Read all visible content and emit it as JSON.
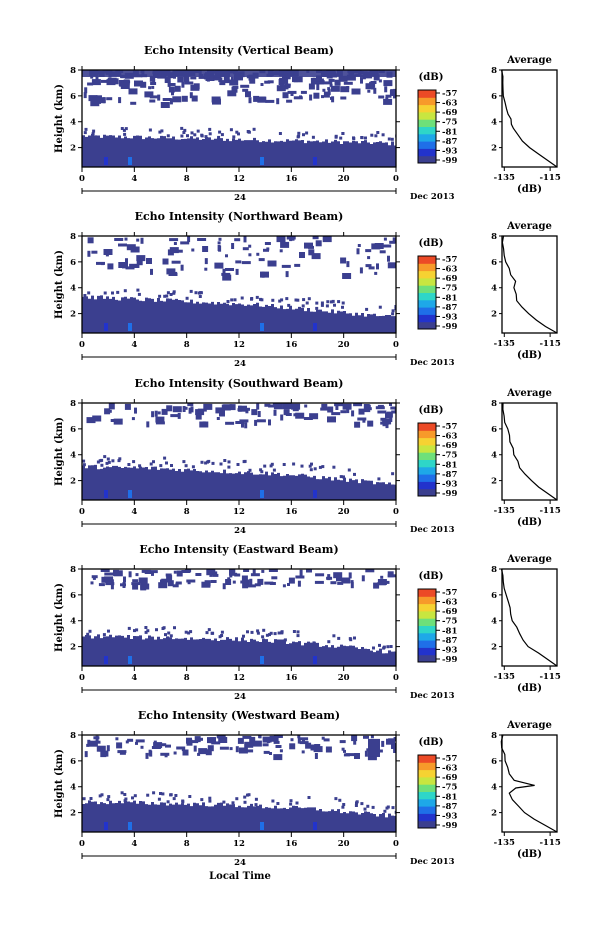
{
  "figure": {
    "xaxis_label": "Local Time",
    "yaxis_label": "Height (km)",
    "date_label": "Dec 2013",
    "day_label": "24",
    "x_ticks": [
      "0",
      "4",
      "8",
      "12",
      "16",
      "20",
      "0"
    ],
    "y_ticks": [
      "2",
      "4",
      "6",
      "8"
    ],
    "avg_title": "Average",
    "avg_xlabel": "(dB)",
    "avg_x_ticks": [
      "-135",
      "-115"
    ],
    "colorbar_unit": "(dB)",
    "colorbar_ticks": [
      "-57",
      "-63",
      "-69",
      "-75",
      "-81",
      "-87",
      "-93",
      "-99"
    ],
    "colormap": [
      "#3b3f8f",
      "#2233cc",
      "#1f6fe8",
      "#1ea8e8",
      "#2ed6c8",
      "#6ee07a",
      "#c8e640",
      "#f6d232",
      "#f79a2a",
      "#ec4a26"
    ],
    "background_color": "#3b3f8f"
  },
  "chart_data": [
    {
      "type": "heatmap",
      "title": "Echo Intensity (Vertical Beam)",
      "xlabel": "",
      "ylabel": "Height (km)",
      "xlim": [
        0,
        24
      ],
      "ylim": [
        0.5,
        8
      ],
      "layer_top_km": [
        2.9,
        2.85,
        2.8,
        2.75,
        2.7,
        2.65,
        2.6,
        2.55,
        2.5,
        2.45,
        2.4,
        2.3
      ],
      "upper_clutter_km": [
        5.5,
        8
      ],
      "average_profile": {
        "xlim": [
          -136,
          -112
        ],
        "height_km": [
          0.5,
          1.0,
          1.5,
          2.0,
          2.5,
          3.0,
          3.5,
          3.8,
          4.2,
          4.6,
          5.0,
          5.5,
          6.0,
          6.5,
          7.0,
          7.5,
          8.0
        ],
        "value_db": [
          -112,
          -116,
          -120,
          -124,
          -127,
          -129,
          -131,
          -132,
          -131.5,
          -133,
          -134,
          -134.5,
          -135,
          -135.2,
          -135.5,
          -135.6,
          -135.8
        ]
      }
    },
    {
      "type": "heatmap",
      "title": "Echo Intensity (Northward Beam)",
      "xlabel": "",
      "ylabel": "Height (km)",
      "xlim": [
        0,
        24
      ],
      "ylim": [
        0.5,
        8
      ],
      "layer_top_km": [
        3.3,
        3.2,
        3.1,
        3.0,
        2.9,
        2.8,
        2.7,
        2.5,
        2.3,
        2.1,
        1.9,
        1.7
      ],
      "upper_clutter_km": [
        5.0,
        8
      ],
      "average_profile": {
        "xlim": [
          -136,
          -112
        ],
        "height_km": [
          0.5,
          1.0,
          1.5,
          2.0,
          2.5,
          3.0,
          3.5,
          4.0,
          4.5,
          5.0,
          5.5,
          6.0,
          6.5,
          7.0,
          7.5,
          8.0
        ],
        "value_db": [
          -112,
          -117,
          -121,
          -124,
          -127,
          -129,
          -130,
          -131,
          -130,
          -132,
          -133,
          -134,
          -135,
          -135.5,
          -135.7,
          -135.8
        ]
      }
    },
    {
      "type": "heatmap",
      "title": "Echo Intensity (Southward Beam)",
      "xlabel": "",
      "ylabel": "Height (km)",
      "xlim": [
        0,
        24
      ],
      "ylim": [
        0.5,
        8
      ],
      "layer_top_km": [
        3.1,
        3.0,
        3.0,
        2.9,
        2.8,
        2.7,
        2.6,
        2.5,
        2.3,
        2.1,
        1.9,
        1.6
      ],
      "upper_clutter_km": [
        6.5,
        8
      ],
      "average_profile": {
        "xlim": [
          -136,
          -112
        ],
        "height_km": [
          0.5,
          1.0,
          1.5,
          2.0,
          2.5,
          3.0,
          3.5,
          4.0,
          4.5,
          5.0,
          5.5,
          6.0,
          6.5,
          7.0,
          7.5,
          8.0
        ],
        "value_db": [
          -112,
          -116,
          -120,
          -123,
          -126,
          -128,
          -129.5,
          -130.5,
          -131.5,
          -132,
          -133,
          -134,
          -135,
          -135.5,
          -135.7,
          -135.8
        ]
      }
    },
    {
      "type": "heatmap",
      "title": "Echo Intensity (Eastward Beam)",
      "xlabel": "",
      "ylabel": "Height (km)",
      "xlim": [
        0,
        24
      ],
      "ylim": [
        0.5,
        8
      ],
      "layer_top_km": [
        2.8,
        2.8,
        2.7,
        2.7,
        2.6,
        2.6,
        2.5,
        2.4,
        2.2,
        2.0,
        1.8,
        1.5
      ],
      "upper_clutter_km": [
        6.8,
        8
      ],
      "average_profile": {
        "xlim": [
          -136,
          -112
        ],
        "height_km": [
          0.5,
          1.0,
          1.5,
          2.0,
          2.5,
          3.0,
          3.5,
          4.0,
          4.5,
          5.0,
          5.5,
          6.0,
          6.5,
          7.0,
          7.5,
          8.0
        ],
        "value_db": [
          -112,
          -116,
          -120,
          -124,
          -127,
          -128.5,
          -130,
          -131,
          -132,
          -132.5,
          -133.5,
          -134.5,
          -135,
          -135.5,
          -135.7,
          -135.8
        ]
      }
    },
    {
      "type": "heatmap",
      "title": "Echo Intensity (Westward Beam)",
      "xlabel": "Local Time",
      "ylabel": "Height (km)",
      "xlim": [
        0,
        24
      ],
      "ylim": [
        0.5,
        8
      ],
      "layer_top_km": [
        2.8,
        2.8,
        2.75,
        2.7,
        2.65,
        2.6,
        2.5,
        2.4,
        2.3,
        2.1,
        1.9,
        1.7
      ],
      "upper_clutter_km": [
        6.5,
        8
      ],
      "average_profile": {
        "xlim": [
          -136,
          -112
        ],
        "height_km": [
          0.5,
          1.0,
          1.5,
          2.0,
          2.5,
          3.0,
          3.5,
          3.9,
          4.1,
          4.5,
          5.0,
          5.5,
          6.0,
          6.5,
          7.0,
          7.5,
          8.0
        ],
        "value_db": [
          -112,
          -117,
          -122,
          -126,
          -129,
          -131,
          -132.5,
          -130,
          -122,
          -131,
          -133,
          -134,
          -135,
          -135.3,
          -135.6,
          -135.7,
          -135.8
        ]
      }
    }
  ]
}
